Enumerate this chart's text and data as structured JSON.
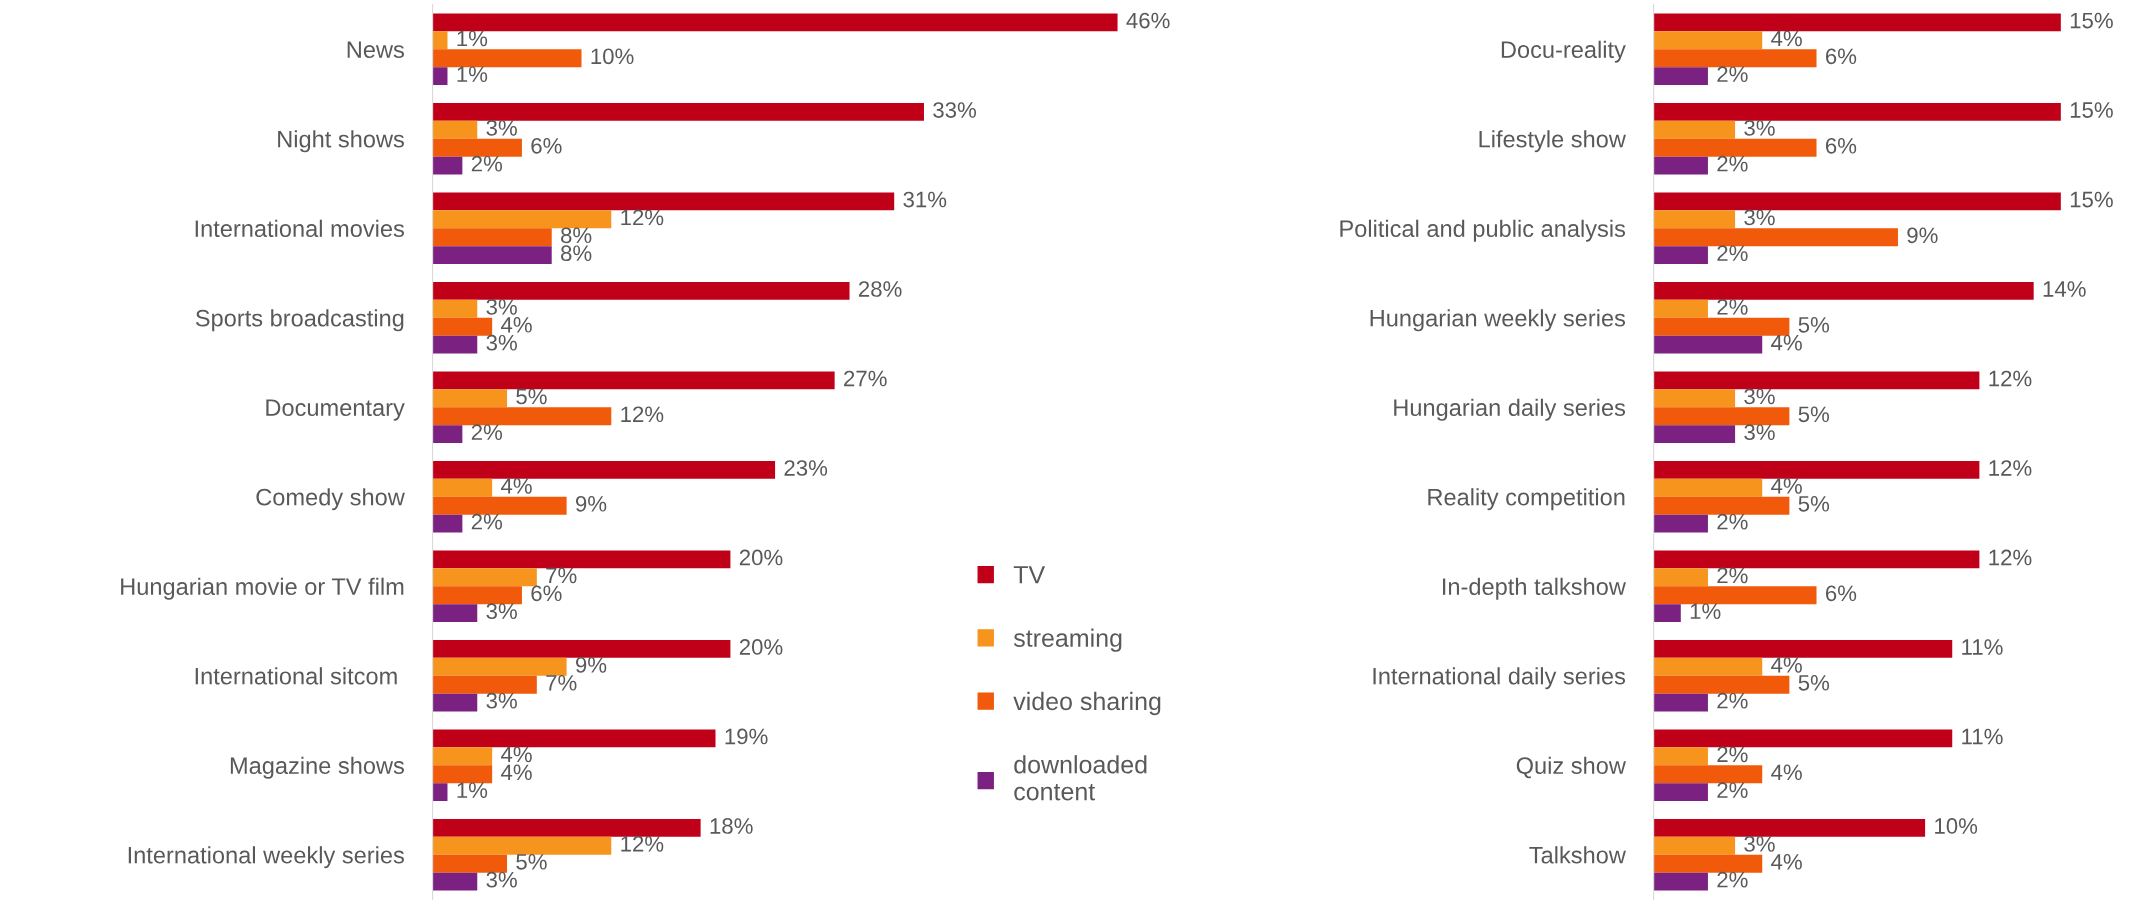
{
  "chart_data": [
    {
      "type": "bar",
      "orientation": "horizontal",
      "legend": "lower right",
      "categories": [
        "News",
        "Night shows",
        "International movies",
        "Sports broadcasting",
        "Documentary",
        "Comedy show",
        "Hungarian movie or TV film",
        "International sitcom ",
        "Magazine shows",
        "International weekly series"
      ],
      "series": [
        {
          "name": "TV",
          "color": "#c00018",
          "values": [
            46,
            33,
            31,
            28,
            27,
            23,
            20,
            20,
            19,
            18
          ],
          "value_labels": [
            "46%",
            "33%",
            "31%",
            "28%",
            "27%",
            "23%",
            "20%",
            "20%",
            "19%",
            "18%"
          ]
        },
        {
          "name": "streaming",
          "color": "#f7941d",
          "values": [
            1,
            3,
            12,
            3,
            5,
            4,
            7,
            9,
            4,
            12
          ],
          "value_labels": [
            "1%",
            "3%",
            "12%",
            "3%",
            "5%",
            "4%",
            "7%",
            "9%",
            "4%",
            "12%"
          ]
        },
        {
          "name": "video sharing",
          "color": "#f05a0a",
          "values": [
            10,
            6,
            8,
            4,
            12,
            9,
            6,
            7,
            4,
            5
          ],
          "value_labels": [
            "10%",
            "6%",
            "8%",
            "4%",
            "12%",
            "9%",
            "6%",
            "7%",
            "4%",
            "5%"
          ]
        },
        {
          "name": "downloaded\ncontent",
          "color": "#7b2181",
          "values": [
            1,
            2,
            8,
            3,
            2,
            2,
            3,
            3,
            1,
            3
          ],
          "value_labels": [
            "1%",
            "2%",
            "8%",
            "3%",
            "2%",
            "2%",
            "3%",
            "3%",
            "1%",
            "3%"
          ]
        }
      ]
    },
    {
      "type": "bar",
      "orientation": "horizontal",
      "categories": [
        "Docu-reality",
        "Lifestyle show",
        "Political and public analysis",
        "Hungarian weekly series",
        "Hungarian daily series",
        "Reality competition",
        "In-depth talkshow",
        "International daily series",
        "Quiz show",
        "Talkshow"
      ],
      "series": [
        {
          "color": "#c00018",
          "values": [
            15,
            15,
            15,
            14,
            12,
            12,
            12,
            11,
            11,
            10
          ],
          "value_labels": [
            "15%",
            "15%",
            "15%",
            "14%",
            "12%",
            "12%",
            "12%",
            "11%",
            "11%",
            "10%"
          ]
        },
        {
          "color": "#f7941d",
          "values": [
            4,
            3,
            3,
            2,
            3,
            4,
            2,
            4,
            2,
            3
          ],
          "value_labels": [
            "4%",
            "3%",
            "3%",
            "2%",
            "3%",
            "4%",
            "2%",
            "4%",
            "2%",
            "3%"
          ]
        },
        {
          "color": "#f05a0a",
          "values": [
            6,
            6,
            9,
            5,
            5,
            5,
            6,
            5,
            4,
            4
          ],
          "value_labels": [
            "6%",
            "6%",
            "9%",
            "5%",
            "5%",
            "5%",
            "6%",
            "5%",
            "4%",
            "4%"
          ]
        },
        {
          "color": "#7b2181",
          "values": [
            2,
            2,
            2,
            4,
            3,
            2,
            1,
            2,
            2,
            2
          ],
          "value_labels": [
            "2%",
            "2%",
            "2%",
            "4%",
            "3%",
            "2%",
            "1%",
            "2%",
            "2%",
            "2%"
          ]
        }
      ]
    }
  ]
}
